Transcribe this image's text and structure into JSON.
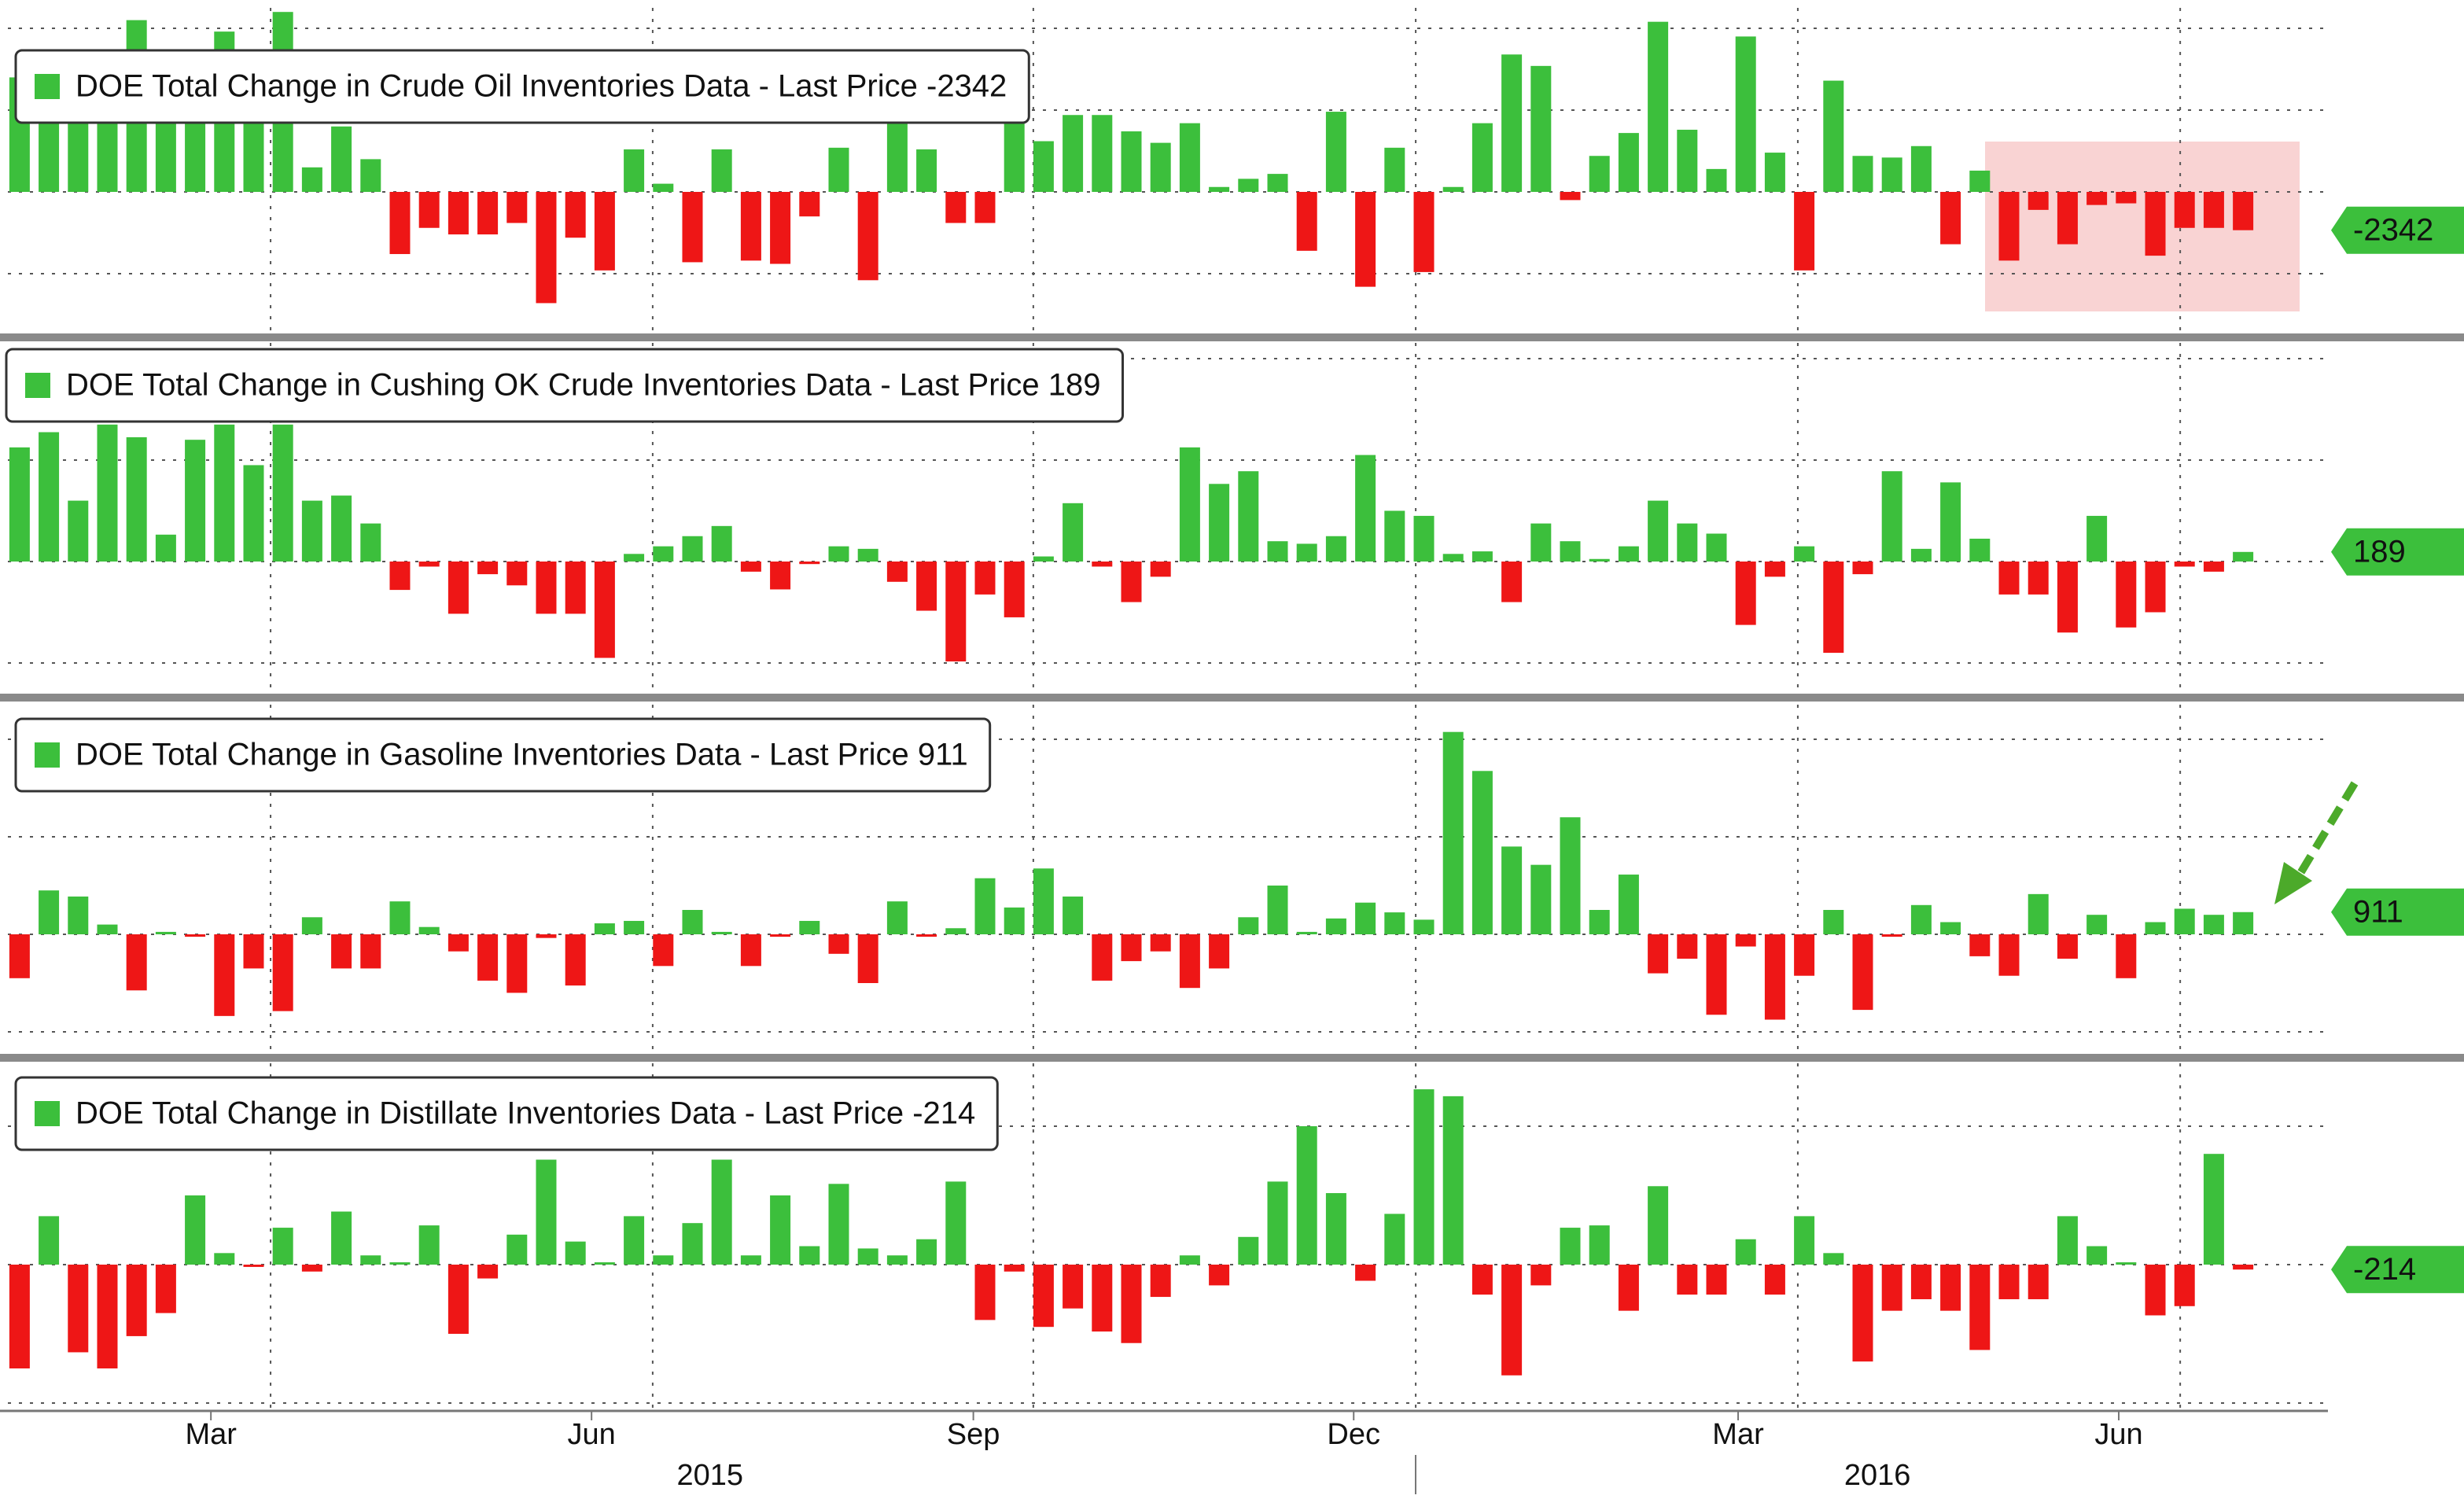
{
  "chart_data": [
    {
      "type": "bar",
      "color": "#3cbf3c",
      "negative_color": "#ee1616",
      "xlim": [
        -0.4,
        78.9
      ],
      "ylim": [
        -8462,
        11250
      ],
      "ygrid": [
        10000,
        5000,
        0,
        -5000
      ],
      "xgrid": [
        8.58,
        21.64,
        34.65,
        47.72,
        60.78,
        73.85
      ],
      "series": [
        {
          "name": "DOE Total Change in Crude Oil Inventories Data - Last Price -2342",
          "values": [
            7000,
            6500,
            7500,
            6000,
            10500,
            6500,
            6000,
            9800,
            6000,
            11000,
            1500,
            4000,
            2000,
            -3800,
            -2200,
            -2600,
            -2600,
            -1900,
            -6800,
            -2800,
            -4800,
            2600,
            500,
            -4300,
            2600,
            -4200,
            -4400,
            -1500,
            2700,
            -5400,
            4700,
            2600,
            -1900,
            -1900,
            4700,
            3100,
            4700,
            4700,
            3700,
            3000,
            4200,
            300,
            800,
            1100,
            -3600,
            4900,
            -5800,
            2700,
            -4900,
            300,
            4200,
            8400,
            7700,
            -500,
            2200,
            3600,
            10400,
            3800,
            1400,
            9500,
            2400,
            -4800,
            6800,
            2200,
            2100,
            2800,
            -3200,
            1300,
            -4200,
            -1100,
            -3200,
            -800,
            -700,
            -3900,
            -2200,
            -2200,
            -2342
          ]
        }
      ]
    },
    {
      "type": "bar",
      "color": "#3cbf3c",
      "negative_color": "#ee1616",
      "xlim": [
        -0.4,
        78.9
      ],
      "ylim": [
        -2574,
        4310
      ],
      "ygrid": [
        4000,
        2000,
        0,
        -2000
      ],
      "xgrid": [
        8.58,
        21.64,
        34.65,
        47.72,
        60.78,
        73.85
      ],
      "series": [
        {
          "name": "DOE Total Change in Cushing OK Crude Inventories Data - Last Price 189",
          "values": [
            2250,
            2550,
            1200,
            2700,
            2450,
            530,
            2400,
            2700,
            1900,
            2700,
            1200,
            1300,
            750,
            -560,
            -100,
            -1030,
            -250,
            -470,
            -1030,
            -1030,
            -1900,
            150,
            300,
            500,
            700,
            -200,
            -550,
            -50,
            300,
            250,
            -400,
            -970,
            -1970,
            -650,
            -1100,
            100,
            1150,
            -100,
            -800,
            -300,
            2250,
            1530,
            1780,
            400,
            350,
            500,
            2100,
            1000,
            900,
            150,
            200,
            -800,
            750,
            400,
            50,
            300,
            1200,
            750,
            550,
            -1250,
            -300,
            300,
            -1800,
            -250,
            1780,
            250,
            1560,
            450,
            -650,
            -650,
            -1400,
            900,
            -1300,
            -1000,
            -100,
            -200,
            189
          ]
        }
      ]
    },
    {
      "type": "bar",
      "color": "#3cbf3c",
      "negative_color": "#ee1616",
      "xlim": [
        -0.4,
        78.9
      ],
      "ylim": [
        -4774,
        9419
      ],
      "ygrid": [
        8000,
        4000,
        0,
        -4000
      ],
      "xgrid": [
        8.58,
        21.64,
        34.65,
        47.72,
        60.78,
        73.85
      ],
      "series": [
        {
          "name": "DOE Total Change in Gasoline Inventories Data - Last Price 911",
          "values": [
            -1800,
            1800,
            1550,
            400,
            -2300,
            100,
            -100,
            -3350,
            -1400,
            -3150,
            700,
            -1400,
            -1400,
            1350,
            300,
            -700,
            -1900,
            -2400,
            -150,
            -2100,
            450,
            550,
            -1300,
            1000,
            100,
            -1300,
            -100,
            550,
            -800,
            -2000,
            1350,
            -100,
            250,
            2300,
            1100,
            2700,
            1550,
            -1900,
            -1100,
            -700,
            -2200,
            -1400,
            700,
            2000,
            100,
            650,
            1300,
            900,
            600,
            8300,
            6700,
            3600,
            2850,
            4800,
            1000,
            2450,
            -1600,
            -1000,
            -3300,
            -500,
            -3500,
            -1700,
            1000,
            -3100,
            -100,
            1200,
            500,
            -900,
            -1700,
            1650,
            -1000,
            800,
            -1800,
            500,
            1050,
            800,
            911
          ]
        }
      ]
    },
    {
      "type": "bar",
      "color": "#3cbf3c",
      "negative_color": "#ee1616",
      "xlim": [
        -0.4,
        78.9
      ],
      "ylim": [
        -6205,
        8727
      ],
      "ygrid": [
        6000,
        0,
        -6000
      ],
      "xgrid": [
        8.58,
        21.64,
        34.65,
        47.72,
        60.78,
        73.85
      ],
      "xticks": [
        {
          "value": 6.54,
          "label": "Mar"
        },
        {
          "value": 19.55,
          "label": "Jun"
        },
        {
          "value": 32.6,
          "label": "Sep"
        },
        {
          "value": 45.6,
          "label": "Dec"
        },
        {
          "value": 58.74,
          "label": "Mar"
        },
        {
          "value": 71.75,
          "label": "Jun"
        }
      ],
      "year_ticks": [
        {
          "value": 23.6,
          "label": "2015"
        },
        {
          "value": 63.5,
          "label": "2016"
        }
      ],
      "series": [
        {
          "name": "DOE Total Change in Distillate Inventories Data - Last Price -214",
          "values": [
            -4500,
            2100,
            -3800,
            -4500,
            -3100,
            -2100,
            3000,
            500,
            -100,
            1600,
            -300,
            2300,
            400,
            100,
            1700,
            -3000,
            -600,
            1300,
            4550,
            1000,
            100,
            2100,
            400,
            1800,
            4550,
            400,
            3000,
            800,
            3500,
            700,
            400,
            1100,
            3600,
            -2400,
            -300,
            -2700,
            -1900,
            -2900,
            -3400,
            -1400,
            400,
            -900,
            1200,
            3600,
            6000,
            3100,
            -700,
            2200,
            7600,
            7300,
            -1300,
            -4800,
            -900,
            1600,
            1700,
            -2000,
            3400,
            -1300,
            -1300,
            1100,
            -1300,
            2100,
            500,
            -4200,
            -2000,
            -1500,
            -2000,
            -3700,
            -1500,
            -1500,
            2100,
            800,
            100,
            -2200,
            -1800,
            4800,
            -214
          ]
        }
      ]
    }
  ]
}
